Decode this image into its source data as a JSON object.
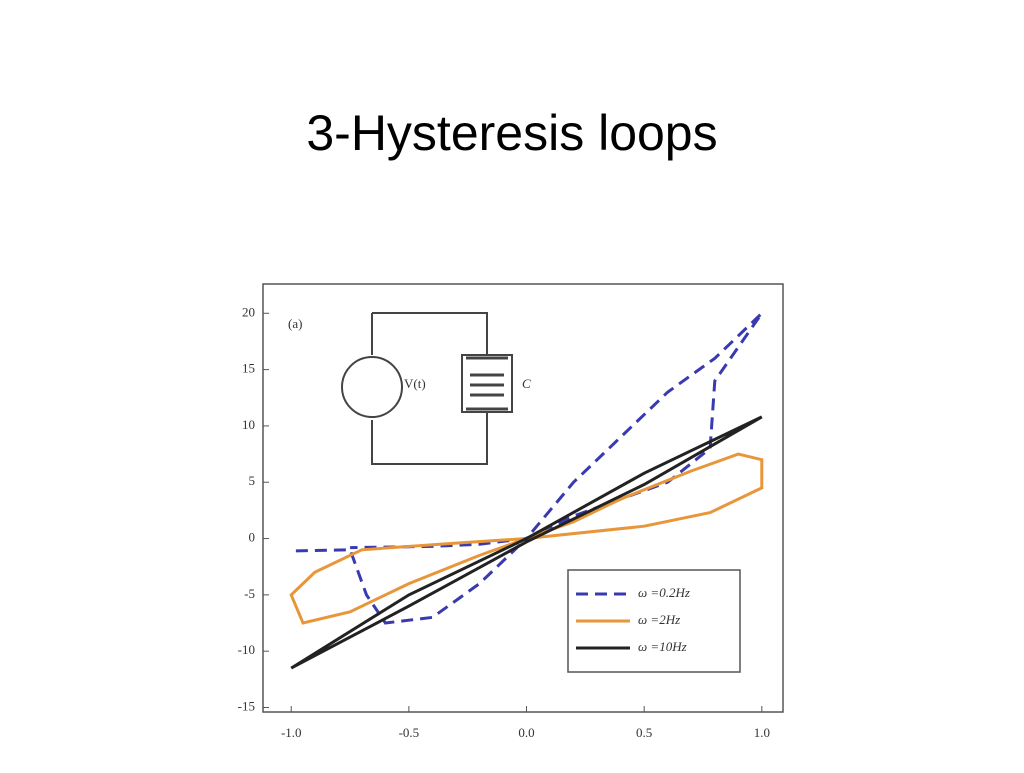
{
  "chart_data": {
    "type": "line",
    "title": "3-Hysteresis loops",
    "annotations": [
      "(a)",
      "V(t)",
      "C"
    ],
    "xlim": [
      -1.12,
      1.09
    ],
    "ylim": [
      -15.4,
      22.6
    ],
    "xticks": [
      {
        "value": -1,
        "label": "-1.0"
      },
      -0.5,
      {
        "value": 0,
        "label": "0.0"
      },
      0.5,
      {
        "value": 1,
        "label": "1.0"
      }
    ],
    "yticks": [
      20,
      15,
      10,
      5,
      0,
      -5,
      -10,
      -15
    ],
    "series": [
      {
        "name": "ω =0.2Hz",
        "color": "#3a3ab0",
        "linestyle": "dashed",
        "x": [
          -0.98,
          -0.75,
          -0.68,
          -0.6,
          -0.4,
          -0.2,
          0,
          0.2,
          0.4,
          0.6,
          0.78,
          0.8,
          1.0,
          0.8,
          0.6,
          0.4,
          0.2,
          0,
          -0.2,
          -0.4,
          -0.75
        ],
        "values": [
          -1.1,
          -1.0,
          -5,
          -7.5,
          -7,
          -4,
          0,
          2,
          3.5,
          5,
          8,
          14,
          20,
          16,
          13,
          9,
          5,
          0,
          -0.5,
          -0.7,
          -0.8
        ]
      },
      {
        "name": "ω =2Hz",
        "color": "#e8963a",
        "linestyle": "solid",
        "x": [
          0,
          0.5,
          0.78,
          1.0,
          1.0,
          0.9,
          0.7,
          0.4,
          0.2,
          0,
          -0.2,
          -0.5,
          -0.75,
          -0.95,
          -1.0,
          -0.9,
          -0.7,
          -0.3,
          0
        ],
        "values": [
          0,
          1.1,
          2.3,
          4.5,
          7,
          7.5,
          6,
          3.5,
          1.5,
          0,
          -1.5,
          -4,
          -6.5,
          -7.5,
          -5,
          -3,
          -1,
          -0.4,
          0
        ]
      },
      {
        "name": "ω =10Hz",
        "color": "#222222",
        "linestyle": "solid",
        "x": [
          -1,
          -0.5,
          0,
          0.5,
          1,
          0.5,
          0,
          -0.5,
          -1
        ],
        "values": [
          -11.5,
          -5,
          0,
          5.8,
          10.8,
          4.8,
          -0.3,
          -6,
          -11.5
        ]
      }
    ]
  }
}
